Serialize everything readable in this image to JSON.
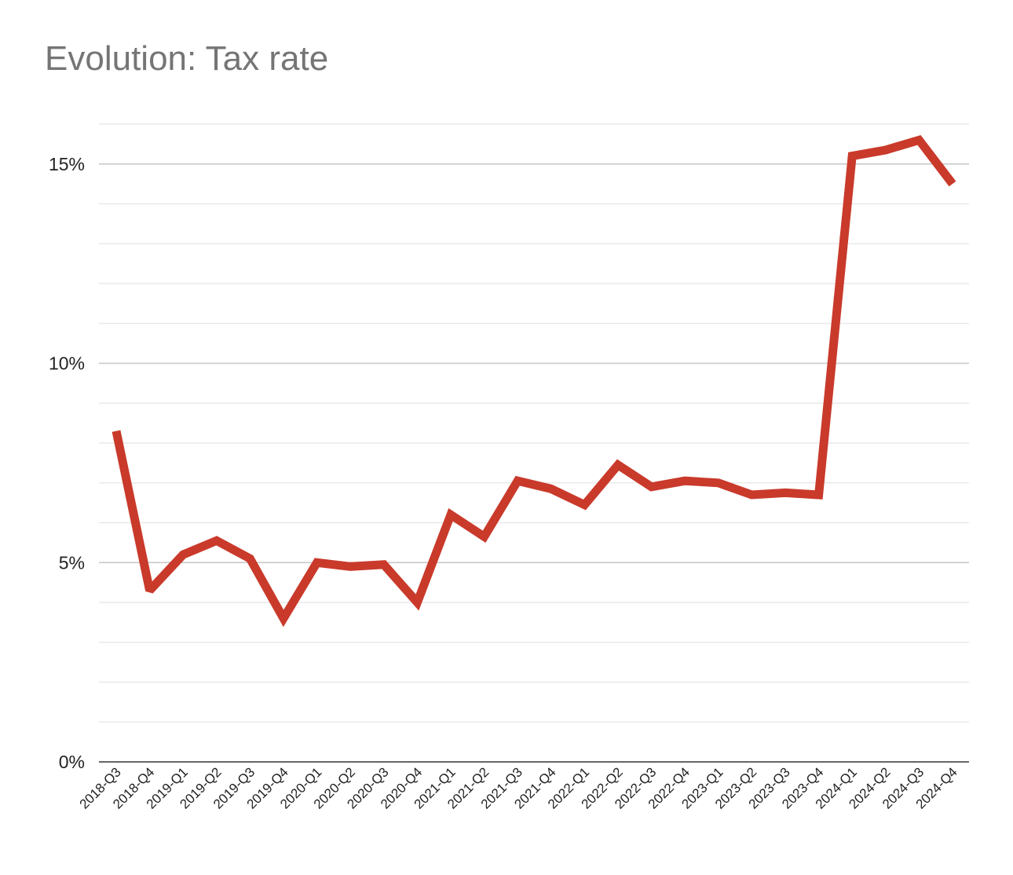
{
  "chart_data": {
    "type": "line",
    "title": "Evolution: Tax rate",
    "xlabel": "",
    "ylabel": "",
    "categories": [
      "2018-Q3",
      "2018-Q4",
      "2019-Q1",
      "2019-Q2",
      "2019-Q3",
      "2019-Q4",
      "2020-Q1",
      "2020-Q2",
      "2020-Q3",
      "2020-Q4",
      "2021-Q1",
      "2021-Q2",
      "2021-Q3",
      "2021-Q4",
      "2022-Q1",
      "2022-Q2",
      "2022-Q3",
      "2022-Q4",
      "2023-Q1",
      "2023-Q2",
      "2023-Q3",
      "2023-Q4",
      "2024-Q1",
      "2024-Q2",
      "2024-Q3",
      "2024-Q4"
    ],
    "series": [
      {
        "name": "",
        "color": "#c93a2b",
        "values": [
          8.3,
          4.3,
          5.2,
          5.55,
          5.1,
          3.6,
          5.0,
          4.9,
          4.95,
          4.0,
          6.2,
          5.65,
          7.05,
          6.85,
          6.45,
          7.45,
          6.9,
          7.05,
          7.0,
          6.7,
          6.75,
          6.7,
          15.2,
          15.35,
          15.6,
          14.5
        ]
      }
    ],
    "ylim": [
      0,
      16
    ],
    "yticks": [
      0,
      5,
      10,
      15
    ],
    "ytick_labels": [
      "0%",
      "5%",
      "10%",
      "15%"
    ],
    "minor_gridlines": true,
    "grid": true,
    "legend": "none"
  }
}
